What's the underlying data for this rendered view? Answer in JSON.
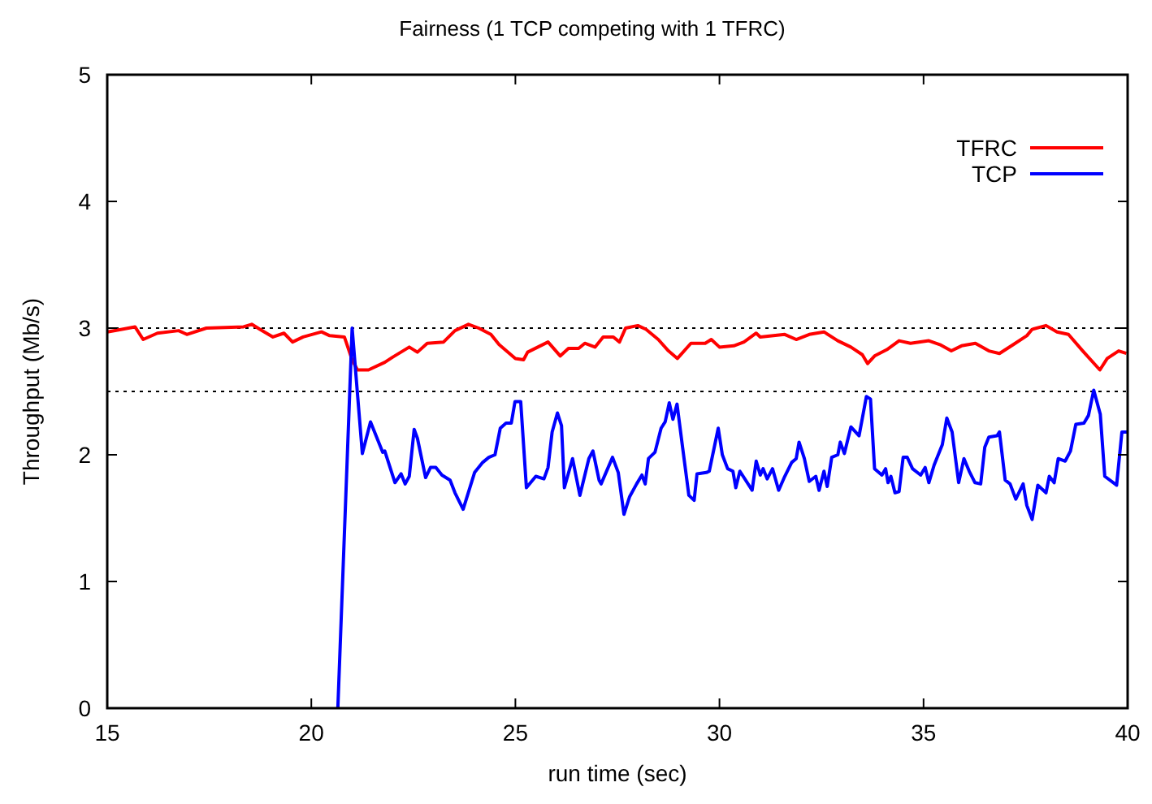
{
  "chart_data": {
    "type": "line",
    "title": "Fairness (1 TCP competing with 1 TFRC)",
    "xlabel": "run time (sec)",
    "ylabel": "Throughput (Mb/s)",
    "xlim": [
      15,
      40
    ],
    "ylim": [
      0,
      5
    ],
    "xticks": [
      15,
      20,
      25,
      30,
      35,
      40
    ],
    "yticks": [
      0,
      1,
      2,
      3,
      4,
      5
    ],
    "grid": false,
    "legend": "top right",
    "marker": "none",
    "line_style": "solid",
    "ref_lines": [
      {
        "axis": "y",
        "value": 3,
        "line_style": "dotted",
        "color": "#000000"
      },
      {
        "axis": "y",
        "value": 2.5,
        "line_style": "dotted",
        "color": "#000000"
      }
    ],
    "series": [
      {
        "name": "TFRC",
        "color": "#ff0000",
        "x": [
          15,
          15.36,
          15.68,
          15.88,
          16.23,
          16.75,
          16.95,
          17.43,
          18.34,
          18.54,
          18.74,
          19.06,
          19.33,
          19.54,
          19.8,
          20.25,
          20.45,
          20.81,
          21.0,
          21.13,
          21.4,
          21.8,
          21.99,
          22.4,
          22.6,
          22.84,
          23.24,
          23.52,
          23.85,
          24.1,
          24.4,
          24.6,
          25.0,
          25.2,
          25.3,
          25.8,
          26.1,
          26.3,
          26.55,
          26.7,
          26.95,
          27.15,
          27.4,
          27.55,
          27.7,
          28.0,
          28.2,
          28.5,
          28.75,
          28.97,
          29.3,
          29.65,
          29.8,
          30.0,
          30.35,
          30.6,
          30.9,
          31.0,
          31.6,
          31.88,
          32.2,
          32.56,
          32.9,
          33.22,
          33.5,
          33.63,
          33.8,
          34.1,
          34.4,
          34.68,
          35.13,
          35.4,
          35.68,
          35.93,
          36.27,
          36.6,
          36.86,
          37.2,
          37.53,
          37.66,
          38.0,
          38.27,
          38.55,
          38.9,
          39.32,
          39.5,
          39.78,
          39.97
        ],
        "values": [
          2.97,
          2.99,
          3.01,
          2.91,
          2.96,
          2.98,
          2.95,
          3.0,
          3.01,
          3.03,
          2.99,
          2.93,
          2.96,
          2.89,
          2.93,
          2.97,
          2.94,
          2.93,
          2.75,
          2.67,
          2.67,
          2.73,
          2.77,
          2.85,
          2.81,
          2.88,
          2.89,
          2.98,
          3.03,
          3.0,
          2.95,
          2.87,
          2.76,
          2.75,
          2.81,
          2.89,
          2.78,
          2.84,
          2.84,
          2.88,
          2.85,
          2.93,
          2.93,
          2.89,
          3.0,
          3.02,
          2.99,
          2.91,
          2.82,
          2.76,
          2.88,
          2.88,
          2.91,
          2.85,
          2.86,
          2.89,
          2.96,
          2.93,
          2.95,
          2.91,
          2.95,
          2.97,
          2.9,
          2.85,
          2.79,
          2.72,
          2.78,
          2.83,
          2.9,
          2.88,
          2.9,
          2.87,
          2.82,
          2.86,
          2.88,
          2.82,
          2.8,
          2.87,
          2.94,
          2.99,
          3.02,
          2.97,
          2.95,
          2.82,
          2.67,
          2.76,
          2.82,
          2.8
        ]
      },
      {
        "name": "TCP",
        "color": "#0000ff",
        "x": [
          20.65,
          21.0,
          21.25,
          21.45,
          21.75,
          21.8,
          22.05,
          22.2,
          22.3,
          22.4,
          22.52,
          22.6,
          22.8,
          22.92,
          23.05,
          23.2,
          23.4,
          23.52,
          23.72,
          24.0,
          24.2,
          24.35,
          24.5,
          24.63,
          24.77,
          24.9,
          24.99,
          25.13,
          25.27,
          25.5,
          25.7,
          25.8,
          25.9,
          26.03,
          26.13,
          26.2,
          26.4,
          26.58,
          26.8,
          26.9,
          27.05,
          27.1,
          27.38,
          27.52,
          27.66,
          27.8,
          27.97,
          28.1,
          28.18,
          28.26,
          28.42,
          28.57,
          28.67,
          28.77,
          28.86,
          28.96,
          29.1,
          29.25,
          29.38,
          29.45,
          29.68,
          29.75,
          29.97,
          30.07,
          30.2,
          30.33,
          30.4,
          30.5,
          30.8,
          30.9,
          31.0,
          31.07,
          31.17,
          31.3,
          31.45,
          31.6,
          31.77,
          31.88,
          31.95,
          32.08,
          32.2,
          32.36,
          32.44,
          32.56,
          32.64,
          32.75,
          32.9,
          32.96,
          33.06,
          33.22,
          33.42,
          33.6,
          33.7,
          33.8,
          33.98,
          34.07,
          34.13,
          34.2,
          34.3,
          34.4,
          34.5,
          34.6,
          34.73,
          34.93,
          35.04,
          35.13,
          35.26,
          35.46,
          35.57,
          35.7,
          35.86,
          35.99,
          36.12,
          36.26,
          36.4,
          36.5,
          36.6,
          36.8,
          36.86,
          37.0,
          37.12,
          37.26,
          37.44,
          37.53,
          37.66,
          37.8,
          38.0,
          38.08,
          38.2,
          38.3,
          38.47,
          38.6,
          38.73,
          38.93,
          39.04,
          39.17,
          39.33,
          39.44,
          39.73,
          39.86,
          40.0
        ],
        "values": [
          0,
          3.0,
          2.01,
          2.26,
          2.02,
          2.03,
          1.78,
          1.85,
          1.77,
          1.83,
          2.2,
          2.13,
          1.82,
          1.9,
          1.9,
          1.84,
          1.8,
          1.7,
          1.57,
          1.86,
          1.94,
          1.98,
          2.0,
          2.21,
          2.25,
          2.25,
          2.42,
          2.42,
          1.74,
          1.83,
          1.81,
          1.9,
          2.18,
          2.33,
          2.23,
          1.74,
          1.97,
          1.68,
          1.97,
          2.03,
          1.8,
          1.77,
          1.98,
          1.86,
          1.53,
          1.67,
          1.77,
          1.84,
          1.77,
          1.97,
          2.02,
          2.21,
          2.26,
          2.41,
          2.28,
          2.4,
          2.05,
          1.68,
          1.64,
          1.85,
          1.86,
          1.87,
          2.21,
          2.0,
          1.89,
          1.87,
          1.74,
          1.87,
          1.72,
          1.95,
          1.84,
          1.89,
          1.81,
          1.89,
          1.72,
          1.83,
          1.94,
          1.97,
          2.1,
          1.97,
          1.79,
          1.83,
          1.72,
          1.87,
          1.75,
          1.98,
          2.0,
          2.1,
          2.01,
          2.22,
          2.15,
          2.46,
          2.44,
          1.89,
          1.84,
          1.89,
          1.78,
          1.83,
          1.7,
          1.71,
          1.98,
          1.98,
          1.89,
          1.84,
          1.9,
          1.78,
          1.92,
          2.08,
          2.29,
          2.18,
          1.78,
          1.97,
          1.87,
          1.78,
          1.77,
          2.06,
          2.14,
          2.15,
          2.18,
          1.8,
          1.77,
          1.65,
          1.77,
          1.6,
          1.49,
          1.76,
          1.7,
          1.83,
          1.78,
          1.97,
          1.95,
          2.03,
          2.24,
          2.25,
          2.31,
          2.51,
          2.32,
          1.83,
          1.76,
          2.18,
          2.18
        ]
      }
    ]
  }
}
